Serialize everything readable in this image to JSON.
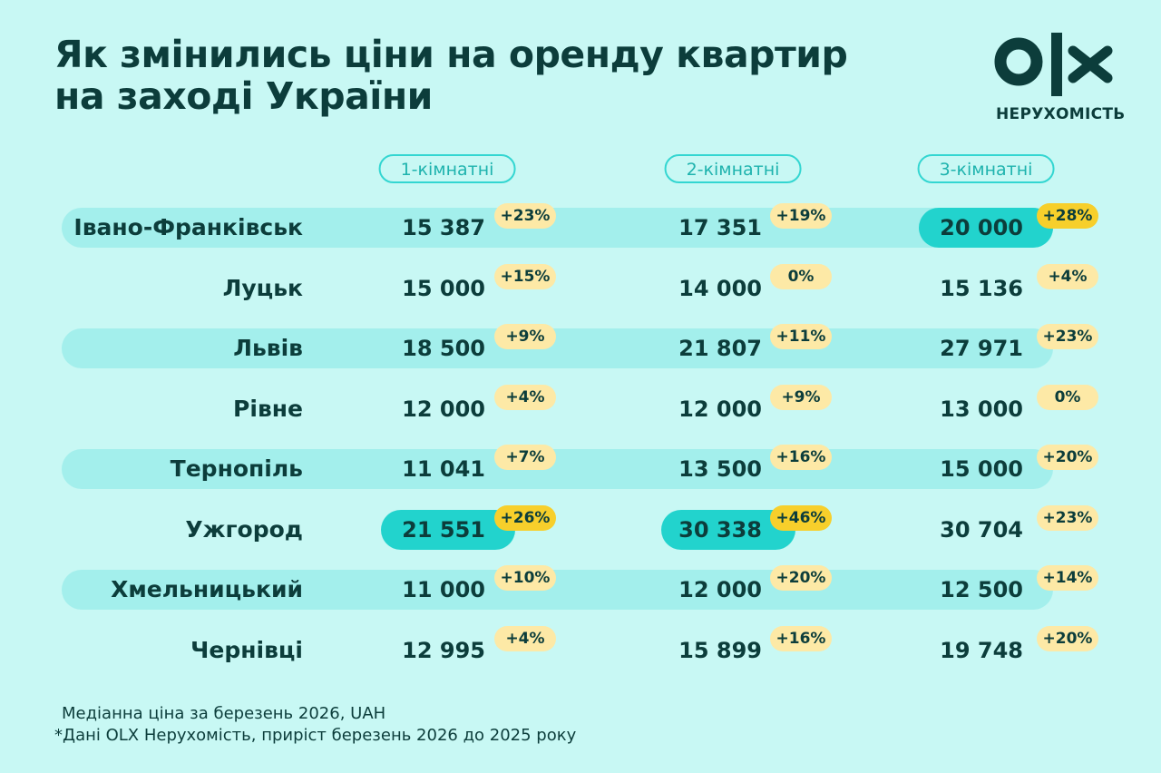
{
  "header": {
    "title": [
      "Як змінились ціни на оренду квартир",
      "на заході України"
    ],
    "brand": "НЕРУХОМІСТЬ"
  },
  "table": {
    "columns": [
      "1-кімнатні",
      "2-кімнатні",
      "3-кімнатні"
    ],
    "rows": [
      {
        "city": "Івано-Франківськ",
        "cells": [
          {
            "price": "15 387",
            "change": "+23%"
          },
          {
            "price": "17 351",
            "change": "+19%"
          },
          {
            "price": "20 000",
            "change": "+28%"
          }
        ]
      },
      {
        "city": "Луцьк",
        "cells": [
          {
            "price": "15 000",
            "change": "+15%"
          },
          {
            "price": "14 000",
            "change": "0%"
          },
          {
            "price": "15 136",
            "change": "+4%"
          }
        ]
      },
      {
        "city": "Львів",
        "cells": [
          {
            "price": "18 500",
            "change": "+9%"
          },
          {
            "price": "21 807",
            "change": "+11%"
          },
          {
            "price": "27 971",
            "change": "+23%"
          }
        ]
      },
      {
        "city": "Рівне",
        "cells": [
          {
            "price": "12 000",
            "change": "+4%"
          },
          {
            "price": "12 000",
            "change": "+9%"
          },
          {
            "price": "13 000",
            "change": "0%"
          }
        ]
      },
      {
        "city": "Тернопіль",
        "cells": [
          {
            "price": "11 041",
            "change": "+7%"
          },
          {
            "price": "13 500",
            "change": "+16%"
          },
          {
            "price": "15 000",
            "change": "+20%"
          }
        ]
      },
      {
        "city": "Ужгород",
        "cells": [
          {
            "price": "21 551",
            "change": "+26%"
          },
          {
            "price": "30 338",
            "change": "+46%"
          },
          {
            "price": "30 704",
            "change": "+23%"
          }
        ]
      },
      {
        "city": "Хмельницький",
        "cells": [
          {
            "price": "11 000",
            "change": "+10%"
          },
          {
            "price": "12 000",
            "change": "+20%"
          },
          {
            "price": "12 500",
            "change": "+14%"
          }
        ]
      },
      {
        "city": "Чернівці",
        "cells": [
          {
            "price": "12 995",
            "change": "+4%"
          },
          {
            "price": "15 899",
            "change": "+16%"
          },
          {
            "price": "19 748",
            "change": "+20%"
          }
        ]
      }
    ],
    "highlight": [
      {
        "row": 5,
        "col": 0
      },
      {
        "row": 5,
        "col": 1
      },
      {
        "row": 0,
        "col": 2
      }
    ]
  },
  "footer": {
    "notes": [
      "Медіанна ціна за березень 2026, UAH",
      "*Дані OLX Нерухомість, приріст березень 2026 до 2025 року"
    ]
  }
}
